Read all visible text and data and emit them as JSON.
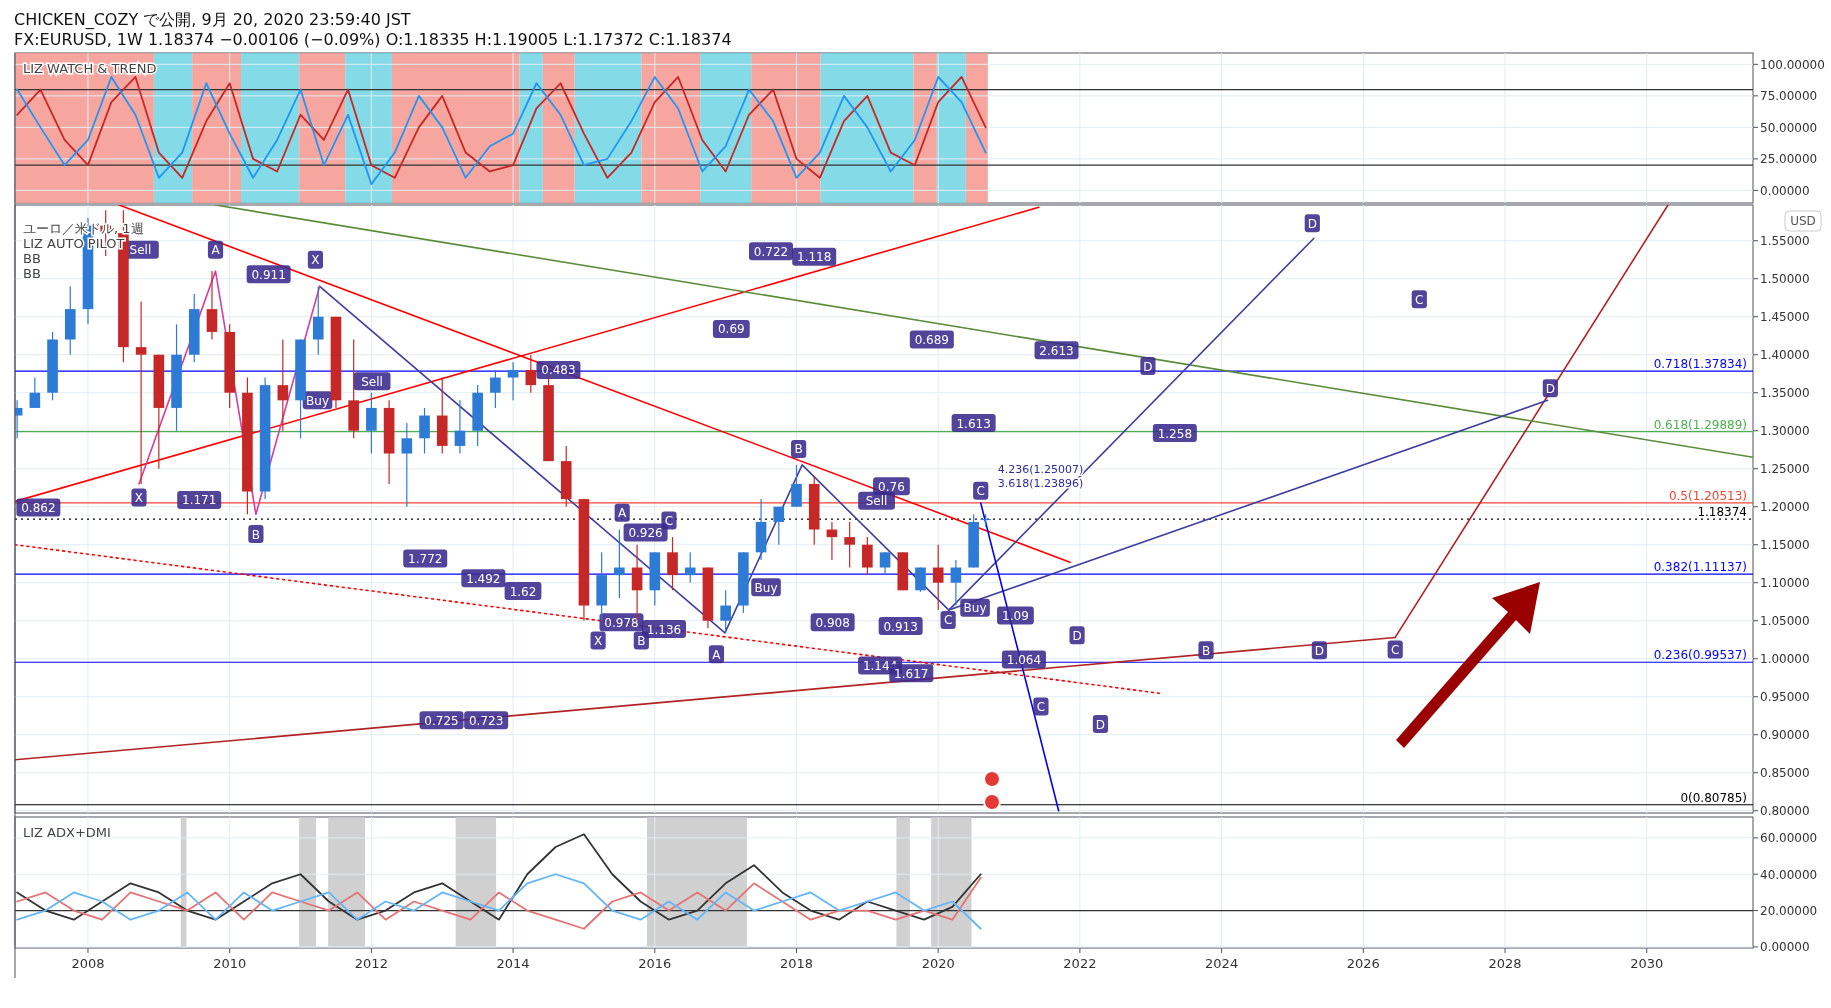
{
  "chart_data": [
    {
      "type": "line",
      "title": "CHICKEN_COZY で公開, 9月 20, 2020 23:59:40 JST",
      "subtitle": "FX:EURUSD, 1W 1.18374 −0.00106 (−0.09%) O:1.18335 H:1.19005 L:1.17372 C:1.18374",
      "annotations": [
        "LIZ WATCH & TREND"
      ],
      "xlim": [
        2006.97,
        2031.5
      ],
      "ylim": [
        -10,
        109
      ],
      "yticks": [
        {
          "value": 0,
          "label": "0.00000"
        },
        {
          "value": 25,
          "label": "25.00000"
        },
        {
          "value": 50,
          "label": "50.00000"
        },
        {
          "value": 75,
          "label": "75.00000"
        },
        {
          "value": 100,
          "label": "100.00000"
        }
      ],
      "tick_labels": "y",
      "grid": true,
      "x": [
        2007.0,
        2007.33,
        2007.67,
        2008.0,
        2008.33,
        2008.67,
        2009.0,
        2009.33,
        2009.67,
        2010.0,
        2010.33,
        2010.67,
        2011.0,
        2011.33,
        2011.67,
        2012.0,
        2012.33,
        2012.67,
        2013.0,
        2013.33,
        2013.67,
        2014.0,
        2014.33,
        2014.67,
        2015.0,
        2015.33,
        2015.67,
        2016.0,
        2016.33,
        2016.67,
        2017.0,
        2017.33,
        2017.67,
        2018.0,
        2018.33,
        2018.67,
        2019.0,
        2019.33,
        2019.67,
        2020.0,
        2020.33,
        2020.67
      ],
      "series": [
        {
          "color": "#c62828",
          "values": [
            60,
            80,
            40,
            20,
            70,
            90,
            30,
            10,
            55,
            85,
            25,
            15,
            60,
            40,
            80,
            20,
            10,
            50,
            75,
            30,
            15,
            20,
            65,
            85,
            45,
            10,
            30,
            70,
            90,
            40,
            15,
            60,
            80,
            25,
            10,
            55,
            75,
            30,
            20,
            70,
            90,
            50
          ]
        },
        {
          "color": "#2196f3",
          "values": [
            80,
            50,
            20,
            40,
            90,
            60,
            10,
            30,
            85,
            45,
            10,
            40,
            80,
            20,
            60,
            5,
            30,
            75,
            50,
            10,
            35,
            45,
            85,
            60,
            20,
            25,
            55,
            90,
            65,
            15,
            35,
            80,
            55,
            10,
            30,
            75,
            50,
            15,
            40,
            90,
            70,
            30
          ]
        }
      ],
      "ref_lines": [
        {
          "axis": "y",
          "value": 80,
          "color": "#333333"
        },
        {
          "axis": "y",
          "value": 20,
          "color": "#333333"
        }
      ],
      "bands": [
        {
          "axis": "x",
          "from": 2006.97,
          "to": 2008.93,
          "color": "#f4978e"
        },
        {
          "axis": "x",
          "from": 2008.93,
          "to": 2009.47,
          "color": "#6fd3e3"
        },
        {
          "axis": "x",
          "from": 2009.47,
          "to": 2010.16,
          "color": "#f4978e"
        },
        {
          "axis": "x",
          "from": 2010.16,
          "to": 2010.98,
          "color": "#6fd3e3"
        },
        {
          "axis": "x",
          "from": 2010.98,
          "to": 2011.63,
          "color": "#f4978e"
        },
        {
          "axis": "x",
          "from": 2011.63,
          "to": 2012.29,
          "color": "#6fd3e3"
        },
        {
          "axis": "x",
          "from": 2012.29,
          "to": 2014.09,
          "color": "#f4978e"
        },
        {
          "axis": "x",
          "from": 2014.09,
          "to": 2014.42,
          "color": "#6fd3e3"
        },
        {
          "axis": "x",
          "from": 2014.42,
          "to": 2014.87,
          "color": "#f4978e"
        },
        {
          "axis": "x",
          "from": 2014.87,
          "to": 2015.81,
          "color": "#6fd3e3"
        },
        {
          "axis": "x",
          "from": 2015.81,
          "to": 2016.64,
          "color": "#f4978e"
        },
        {
          "axis": "x",
          "from": 2016.64,
          "to": 2017.36,
          "color": "#6fd3e3"
        },
        {
          "axis": "x",
          "from": 2017.36,
          "to": 2018.34,
          "color": "#f4978e"
        },
        {
          "axis": "x",
          "from": 2018.34,
          "to": 2019.65,
          "color": "#6fd3e3"
        },
        {
          "axis": "x",
          "from": 2019.65,
          "to": 2019.98,
          "color": "#f4978e"
        },
        {
          "axis": "x",
          "from": 2019.98,
          "to": 2020.39,
          "color": "#6fd3e3"
        },
        {
          "axis": "x",
          "from": 2020.39,
          "to": 2020.7,
          "color": "#f4978e"
        }
      ]
    },
    {
      "type": "candlestick",
      "title": "ユーロ／米ドル, 1週",
      "ylabel": "USD",
      "xlim": [
        2006.97,
        2031.5
      ],
      "ylim": [
        0.797,
        1.597
      ],
      "tick_labels": "y",
      "grid": true,
      "yticks": [
        {
          "value": 0.8,
          "label": "0.80000"
        },
        {
          "value": 0.85,
          "label": "0.85000"
        },
        {
          "value": 0.9,
          "label": "0.90000"
        },
        {
          "value": 0.95,
          "label": "0.95000"
        },
        {
          "value": 1.0,
          "label": "1.00000"
        },
        {
          "value": 1.05,
          "label": "1.05000"
        },
        {
          "value": 1.1,
          "label": "1.10000"
        },
        {
          "value": 1.15,
          "label": "1.15000"
        },
        {
          "value": 1.2,
          "label": "1.20000"
        },
        {
          "value": 1.25,
          "label": "1.25000"
        },
        {
          "value": 1.3,
          "label": "1.30000"
        },
        {
          "value": 1.35,
          "label": "1.35000"
        },
        {
          "value": 1.4,
          "label": "1.40000"
        },
        {
          "value": 1.45,
          "label": "1.45000"
        },
        {
          "value": 1.5,
          "label": "1.50000"
        },
        {
          "value": 1.55,
          "label": "1.55000"
        }
      ],
      "x": [
        2007.0,
        2007.25,
        2007.5,
        2007.75,
        2008.0,
        2008.25,
        2008.5,
        2008.75,
        2009.0,
        2009.25,
        2009.5,
        2009.75,
        2010.0,
        2010.25,
        2010.5,
        2010.75,
        2011.0,
        2011.25,
        2011.5,
        2011.75,
        2012.0,
        2012.25,
        2012.5,
        2012.75,
        2013.0,
        2013.25,
        2013.5,
        2013.75,
        2014.0,
        2014.25,
        2014.5,
        2014.75,
        2015.0,
        2015.25,
        2015.5,
        2015.75,
        2016.0,
        2016.25,
        2016.5,
        2016.75,
        2017.0,
        2017.25,
        2017.5,
        2017.75,
        2018.0,
        2018.25,
        2018.5,
        2018.75,
        2019.0,
        2019.25,
        2019.5,
        2019.75,
        2020.0,
        2020.25,
        2020.5,
        2020.67
      ],
      "ohlc": [
        [
          1.32,
          1.34,
          1.29,
          1.33
        ],
        [
          1.33,
          1.37,
          1.33,
          1.35
        ],
        [
          1.35,
          1.43,
          1.34,
          1.42
        ],
        [
          1.42,
          1.49,
          1.4,
          1.46
        ],
        [
          1.46,
          1.58,
          1.44,
          1.57
        ],
        [
          1.57,
          1.59,
          1.53,
          1.56
        ],
        [
          1.56,
          1.59,
          1.39,
          1.41
        ],
        [
          1.41,
          1.47,
          1.23,
          1.4
        ],
        [
          1.4,
          1.4,
          1.25,
          1.33
        ],
        [
          1.33,
          1.44,
          1.3,
          1.4
        ],
        [
          1.4,
          1.48,
          1.39,
          1.46
        ],
        [
          1.46,
          1.51,
          1.42,
          1.43
        ],
        [
          1.43,
          1.44,
          1.33,
          1.35
        ],
        [
          1.35,
          1.37,
          1.19,
          1.22
        ],
        [
          1.22,
          1.37,
          1.21,
          1.36
        ],
        [
          1.36,
          1.42,
          1.3,
          1.34
        ],
        [
          1.34,
          1.42,
          1.29,
          1.42
        ],
        [
          1.42,
          1.49,
          1.4,
          1.45
        ],
        [
          1.45,
          1.45,
          1.33,
          1.34
        ],
        [
          1.34,
          1.42,
          1.29,
          1.3
        ],
        [
          1.3,
          1.35,
          1.27,
          1.33
        ],
        [
          1.33,
          1.34,
          1.23,
          1.27
        ],
        [
          1.27,
          1.31,
          1.2,
          1.29
        ],
        [
          1.29,
          1.33,
          1.27,
          1.32
        ],
        [
          1.32,
          1.37,
          1.27,
          1.28
        ],
        [
          1.28,
          1.34,
          1.27,
          1.3
        ],
        [
          1.3,
          1.36,
          1.28,
          1.35
        ],
        [
          1.35,
          1.38,
          1.33,
          1.37
        ],
        [
          1.37,
          1.39,
          1.34,
          1.38
        ],
        [
          1.38,
          1.4,
          1.35,
          1.36
        ],
        [
          1.36,
          1.37,
          1.26,
          1.26
        ],
        [
          1.26,
          1.28,
          1.2,
          1.21
        ],
        [
          1.21,
          1.21,
          1.05,
          1.07
        ],
        [
          1.07,
          1.14,
          1.05,
          1.11
        ],
        [
          1.11,
          1.17,
          1.08,
          1.12
        ],
        [
          1.12,
          1.15,
          1.05,
          1.09
        ],
        [
          1.09,
          1.14,
          1.07,
          1.14
        ],
        [
          1.14,
          1.16,
          1.09,
          1.11
        ],
        [
          1.11,
          1.14,
          1.1,
          1.12
        ],
        [
          1.12,
          1.12,
          1.04,
          1.05
        ],
        [
          1.05,
          1.09,
          1.034,
          1.07
        ],
        [
          1.07,
          1.14,
          1.06,
          1.14
        ],
        [
          1.14,
          1.21,
          1.13,
          1.18
        ],
        [
          1.18,
          1.2,
          1.15,
          1.2
        ],
        [
          1.2,
          1.255,
          1.2,
          1.23
        ],
        [
          1.23,
          1.24,
          1.15,
          1.17
        ],
        [
          1.17,
          1.18,
          1.13,
          1.16
        ],
        [
          1.16,
          1.18,
          1.12,
          1.15
        ],
        [
          1.15,
          1.16,
          1.11,
          1.12
        ],
        [
          1.12,
          1.14,
          1.11,
          1.14
        ],
        [
          1.14,
          1.14,
          1.09,
          1.09
        ],
        [
          1.09,
          1.12,
          1.088,
          1.12
        ],
        [
          1.12,
          1.15,
          1.064,
          1.1
        ],
        [
          1.1,
          1.13,
          1.07,
          1.12
        ],
        [
          1.12,
          1.19,
          1.12,
          1.18
        ],
        [
          1.18335,
          1.19005,
          1.17372,
          1.18374
        ]
      ],
      "series": [
        {
          "type": "line",
          "color": "#ff0000",
          "x": [
            2006.97,
            2021.42
          ],
          "values": [
            1.207,
            1.594
          ]
        },
        {
          "type": "line",
          "color": "#ff0000",
          "x": [
            2008.44,
            2021.86
          ],
          "values": [
            1.597,
            1.127
          ]
        },
        {
          "type": "line",
          "color": "#ff0000",
          "line_style": "dotted",
          "x": [
            2006.97,
            2023.17
          ],
          "values": [
            1.15,
            0.954
          ]
        },
        {
          "type": "line",
          "color": "#b22222",
          "x": [
            2006.97,
            2026.45
          ],
          "values": [
            0.867,
            1.028
          ]
        },
        {
          "type": "line",
          "color": "#b22222",
          "x": [
            2026.45,
            2030.3
          ],
          "values": [
            1.028,
            1.597
          ]
        },
        {
          "type": "line",
          "color": "#5b8c3a",
          "x": [
            2009.8,
            2031.5
          ],
          "values": [
            1.597,
            1.265
          ]
        },
        {
          "type": "line",
          "color": "#3f3fa0",
          "x": [
            2011.27,
            2016.99,
            2018.08,
            2020.15,
            2025.3
          ],
          "values": [
            1.49,
            1.034,
            1.255,
            1.064,
            1.553
          ]
        },
        {
          "type": "line",
          "color": "#3f3fa0",
          "x": [
            2020.15,
            2028.6
          ],
          "values": [
            1.064,
            1.34
          ]
        },
        {
          "type": "line",
          "color": "#d63f9c",
          "x": [
            2008.72,
            2009.8,
            2010.37,
            2011.27
          ],
          "values": [
            1.23,
            1.51,
            1.19,
            1.49
          ]
        },
        {
          "type": "line",
          "color": "#0000ff",
          "x": [
            2020.6,
            2021.7
          ],
          "values": [
            1.205,
            0.8
          ]
        }
      ],
      "ref_lines": [
        {
          "axis": "y",
          "value": 1.37834,
          "label": "0.718(1.37834)",
          "color": "#0000ff"
        },
        {
          "axis": "y",
          "value": 1.29889,
          "label": "0.618(1.29889)",
          "color": "#4caf50"
        },
        {
          "axis": "y",
          "value": 1.20513,
          "label": "0.5(1.20513)",
          "color": "#f44336"
        },
        {
          "axis": "y",
          "value": 1.18374,
          "label": "1.18374",
          "color": "#000000",
          "line_style": "dotted"
        },
        {
          "axis": "y",
          "value": 1.11137,
          "label": "0.382(1.11137)",
          "color": "#0000ff"
        },
        {
          "axis": "y",
          "value": 0.99537,
          "label": "0.236(0.99537)",
          "color": "#0000ff"
        },
        {
          "axis": "y",
          "value": 0.80785,
          "label": "0(0.80785)",
          "color": "#000000"
        }
      ],
      "annotations": [
        "LIZ AUTO PILOT",
        "BB",
        "BB",
        "4.236(1.25007)",
        "3.618(1.23896)",
        {
          "text": "Sell",
          "x": 2008.74,
          "y": 1.538
        },
        {
          "text": "A",
          "x": 2009.8,
          "y": 1.538
        },
        {
          "text": "0.911",
          "x": 2010.55,
          "y": 1.506
        },
        {
          "text": "X",
          "x": 2011.21,
          "y": 1.525
        },
        {
          "text": "0.722",
          "x": 2017.64,
          "y": 1.536
        },
        {
          "text": "1.118",
          "x": 2018.25,
          "y": 1.529
        },
        {
          "text": "0.69",
          "x": 2017.08,
          "y": 1.434
        },
        {
          "text": "0.689",
          "x": 2019.91,
          "y": 1.42
        },
        {
          "text": "2.613",
          "x": 2021.67,
          "y": 1.406
        },
        {
          "text": "D",
          "x": 2025.28,
          "y": 1.573
        },
        {
          "text": "C",
          "x": 2026.79,
          "y": 1.473
        },
        {
          "text": "D",
          "x": 2022.96,
          "y": 1.385
        },
        {
          "text": "D",
          "x": 2028.64,
          "y": 1.356
        },
        {
          "text": "Sell",
          "x": 2012.01,
          "y": 1.365
        },
        {
          "text": "Buy",
          "x": 2011.24,
          "y": 1.34
        },
        {
          "text": "0.483",
          "x": 2014.64,
          "y": 1.38
        },
        {
          "text": "1.613",
          "x": 2020.5,
          "y": 1.31
        },
        {
          "text": "1.258",
          "x": 2023.34,
          "y": 1.297
        },
        {
          "text": "B",
          "x": 2018.03,
          "y": 1.276
        },
        {
          "text": "0.76",
          "x": 2019.34,
          "y": 1.227
        },
        {
          "text": "Sell",
          "x": 2019.13,
          "y": 1.208
        },
        {
          "text": "0.862",
          "x": 2007.3,
          "y": 1.199
        },
        {
          "text": "X",
          "x": 2008.72,
          "y": 1.212
        },
        {
          "text": "1.171",
          "x": 2009.57,
          "y": 1.209
        },
        {
          "text": "B",
          "x": 2010.37,
          "y": 1.164
        },
        {
          "text": "A",
          "x": 2015.54,
          "y": 1.192
        },
        {
          "text": "C",
          "x": 2016.2,
          "y": 1.182
        },
        {
          "text": "0.926",
          "x": 2015.87,
          "y": 1.166
        },
        {
          "text": "1.772",
          "x": 2012.76,
          "y": 1.132
        },
        {
          "text": "1.492",
          "x": 2013.58,
          "y": 1.106
        },
        {
          "text": "1.62",
          "x": 2014.14,
          "y": 1.089
        },
        {
          "text": "Buy",
          "x": 2017.57,
          "y": 1.094
        },
        {
          "text": "0.978",
          "x": 2015.53,
          "y": 1.048
        },
        {
          "text": "1.136",
          "x": 2016.13,
          "y": 1.039
        },
        {
          "text": "X",
          "x": 2015.2,
          "y": 1.024
        },
        {
          "text": "B",
          "x": 2015.81,
          "y": 1.024
        },
        {
          "text": "A",
          "x": 2016.87,
          "y": 1.006
        },
        {
          "text": "0.908",
          "x": 2018.51,
          "y": 1.048
        },
        {
          "text": "0.913",
          "x": 2019.47,
          "y": 1.043
        },
        {
          "text": "Buy",
          "x": 2020.52,
          "y": 1.067
        },
        {
          "text": "1.09",
          "x": 2021.09,
          "y": 1.057
        },
        {
          "text": "C",
          "x": 2020.14,
          "y": 1.051
        },
        {
          "text": "C",
          "x": 2020.6,
          "y": 1.221
        },
        {
          "text": "D",
          "x": 2021.96,
          "y": 1.031
        },
        {
          "text": "1.064",
          "x": 2021.21,
          "y": 0.999
        },
        {
          "text": "1.144",
          "x": 2019.18,
          "y": 0.991
        },
        {
          "text": "1.617",
          "x": 2019.62,
          "y": 0.981
        },
        {
          "text": "C",
          "x": 2021.45,
          "y": 0.937
        },
        {
          "text": "D",
          "x": 2022.29,
          "y": 0.914
        },
        {
          "text": "B",
          "x": 2023.78,
          "y": 1.011
        },
        {
          "text": "D",
          "x": 2025.38,
          "y": 1.011
        },
        {
          "text": "C",
          "x": 2026.45,
          "y": 1.012
        },
        {
          "text": "0.725",
          "x": 2012.99,
          "y": 0.919
        },
        {
          "text": "0.723",
          "x": 2013.62,
          "y": 0.919
        }
      ]
    },
    {
      "type": "line",
      "annotations": [
        "LIZ ADX+DMI"
      ],
      "xlim": [
        2006.97,
        2031.5
      ],
      "ylim": [
        -0.6,
        71.5
      ],
      "grid": true,
      "xticks": [
        2008,
        2010,
        2012,
        2014,
        2016,
        2018,
        2020,
        2022,
        2024,
        2026,
        2028,
        2030
      ],
      "yticks": [
        {
          "value": 0,
          "label": "0.00000"
        },
        {
          "value": 20,
          "label": "20.00000"
        },
        {
          "value": 40,
          "label": "40.00000"
        },
        {
          "value": 60,
          "label": "60.00000"
        }
      ],
      "x": [
        2007.0,
        2007.4,
        2007.8,
        2008.2,
        2008.6,
        2009.0,
        2009.4,
        2009.8,
        2010.2,
        2010.6,
        2011.0,
        2011.4,
        2011.8,
        2012.2,
        2012.6,
        2013.0,
        2013.4,
        2013.8,
        2014.2,
        2014.6,
        2015.0,
        2015.4,
        2015.8,
        2016.2,
        2016.6,
        2017.0,
        2017.4,
        2017.8,
        2018.2,
        2018.6,
        2019.0,
        2019.4,
        2019.8,
        2020.2,
        2020.6
      ],
      "series": [
        {
          "color": "#333333",
          "values": [
            30,
            20,
            15,
            25,
            35,
            30,
            20,
            15,
            25,
            35,
            40,
            25,
            15,
            20,
            30,
            35,
            25,
            15,
            40,
            55,
            62,
            40,
            25,
            15,
            20,
            35,
            45,
            30,
            20,
            15,
            25,
            20,
            15,
            22,
            40
          ]
        },
        {
          "color": "#e57373",
          "values": [
            25,
            30,
            20,
            15,
            30,
            25,
            20,
            30,
            15,
            30,
            25,
            20,
            30,
            15,
            25,
            20,
            15,
            30,
            20,
            15,
            10,
            25,
            30,
            20,
            30,
            20,
            35,
            25,
            15,
            20,
            20,
            15,
            20,
            15,
            38
          ]
        },
        {
          "color": "#64b5f6",
          "values": [
            15,
            20,
            30,
            25,
            15,
            20,
            30,
            15,
            30,
            20,
            25,
            30,
            15,
            25,
            20,
            30,
            25,
            20,
            35,
            40,
            35,
            20,
            15,
            25,
            15,
            30,
            20,
            25,
            30,
            20,
            25,
            30,
            20,
            25,
            10
          ]
        }
      ],
      "ref_lines": [
        {
          "axis": "y",
          "value": 20,
          "color": "#333333"
        }
      ],
      "bands": [
        {
          "axis": "x",
          "from": 2009.31,
          "to": 2009.39,
          "color": "#c8c8c8"
        },
        {
          "axis": "x",
          "from": 2010.98,
          "to": 2011.22,
          "color": "#c8c8c8"
        },
        {
          "axis": "x",
          "from": 2011.39,
          "to": 2011.91,
          "color": "#c8c8c8"
        },
        {
          "axis": "x",
          "from": 2013.19,
          "to": 2013.76,
          "color": "#c8c8c8"
        },
        {
          "axis": "x",
          "from": 2015.89,
          "to": 2017.3,
          "color": "#c8c8c8"
        },
        {
          "axis": "x",
          "from": 2019.41,
          "to": 2019.6,
          "color": "#c8c8c8"
        },
        {
          "axis": "x",
          "from": 2019.9,
          "to": 2020.47,
          "color": "#c8c8c8"
        }
      ]
    }
  ]
}
